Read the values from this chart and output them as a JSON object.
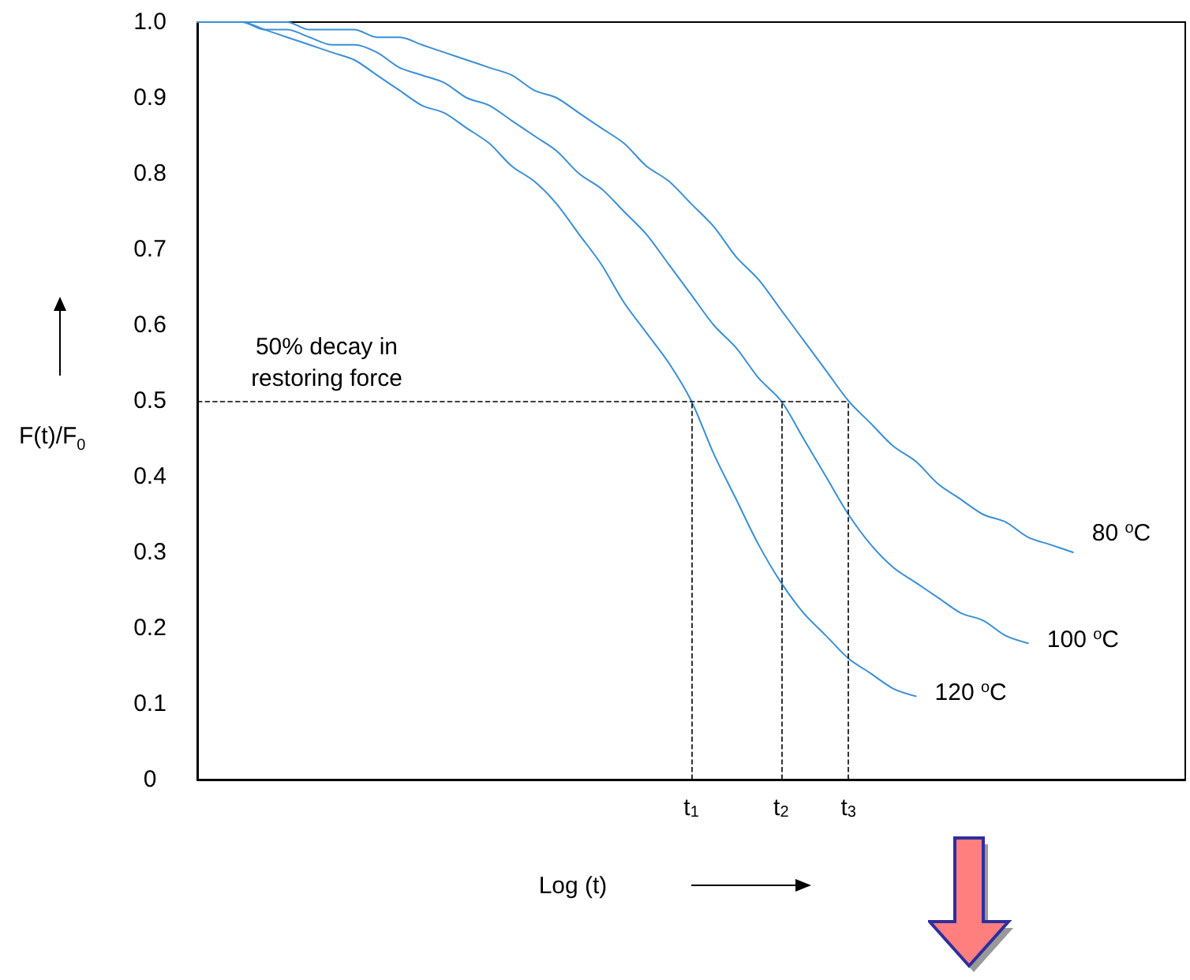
{
  "chart_data": {
    "type": "line",
    "xlabel": "Log (t)",
    "ylabel": "F(t)/F$_{0}$",
    "categories": [
      null,
      null,
      null,
      null,
      null,
      null,
      null,
      null,
      null,
      null,
      null,
      null,
      null,
      null,
      null,
      null,
      null,
      null,
      null,
      null,
      null,
      null,
      "t$_{1}$",
      null,
      null,
      null,
      "t$_{2}$",
      null,
      null,
      "t$_{3}$",
      null,
      null,
      null,
      null,
      null,
      null,
      null,
      null,
      null,
      null,
      null,
      null,
      null,
      null,
      null
    ],
    "ylim": [
      0,
      1
    ],
    "yticks": [
      0,
      0.1,
      0.2,
      0.3,
      0.4,
      0.5,
      0.6,
      0.7,
      0.8,
      0.9,
      {
        "value": 1,
        "label": "1.0"
      }
    ],
    "series": [
      {
        "name": "80 $^{o}$C",
        "color": "#3a8fd6",
        "values": [
          1.0,
          1.0,
          1.0,
          1.0,
          1.0,
          0.99,
          0.99,
          0.99,
          0.98,
          0.98,
          0.97,
          0.96,
          0.95,
          0.94,
          0.93,
          0.91,
          0.9,
          0.88,
          0.86,
          0.84,
          0.81,
          0.79,
          0.76,
          0.73,
          0.69,
          0.66,
          0.62,
          0.58,
          0.54,
          0.5,
          0.47,
          0.44,
          0.42,
          0.39,
          0.37,
          0.35,
          0.34,
          0.32,
          0.31,
          0.3,
          null,
          null,
          null,
          null,
          null
        ]
      },
      {
        "name": "100 $^{o}$C",
        "color": "#3a8fd6",
        "values": [
          1.0,
          1.0,
          1.0,
          0.99,
          0.99,
          0.98,
          0.97,
          0.97,
          0.96,
          0.94,
          0.93,
          0.92,
          0.9,
          0.89,
          0.87,
          0.85,
          0.83,
          0.8,
          0.78,
          0.75,
          0.72,
          0.68,
          0.64,
          0.6,
          0.57,
          0.53,
          0.5,
          0.45,
          0.4,
          0.35,
          0.31,
          0.28,
          0.26,
          0.24,
          0.22,
          0.21,
          0.19,
          0.18,
          null,
          null,
          null,
          null,
          null,
          null,
          null
        ]
      },
      {
        "name": "120 $^{o}$C",
        "color": "#3a8fd6",
        "values": [
          1.0,
          1.0,
          1.0,
          0.99,
          0.98,
          0.97,
          0.96,
          0.95,
          0.93,
          0.91,
          0.89,
          0.88,
          0.86,
          0.84,
          0.81,
          0.79,
          0.76,
          0.72,
          0.68,
          0.63,
          0.59,
          0.55,
          0.5,
          0.43,
          0.37,
          0.31,
          0.26,
          0.22,
          0.19,
          0.16,
          0.14,
          0.12,
          0.11,
          null,
          null,
          null,
          null,
          null,
          null,
          null,
          null,
          null,
          null,
          null,
          null
        ]
      }
    ],
    "ref_lines": [
      {
        "axis": "y",
        "value": 0.5,
        "color": "#000000",
        "line_style": "dashed"
      },
      {
        "axis": "x",
        "value": "t$_{1}$",
        "color": "#000000",
        "line_style": "dashed"
      },
      {
        "axis": "x",
        "value": "t$_{2}$",
        "color": "#000000",
        "line_style": "dashed"
      },
      {
        "axis": "x",
        "value": "t$_{3}$",
        "color": "#000000",
        "line_style": "dashed"
      }
    ],
    "annotations": [
      {
        "text": "50% decay in\nrestoring force",
        "y": 0.5
      }
    ],
    "legend": false,
    "grid": false,
    "marker": "none",
    "line_style": "solid"
  }
}
